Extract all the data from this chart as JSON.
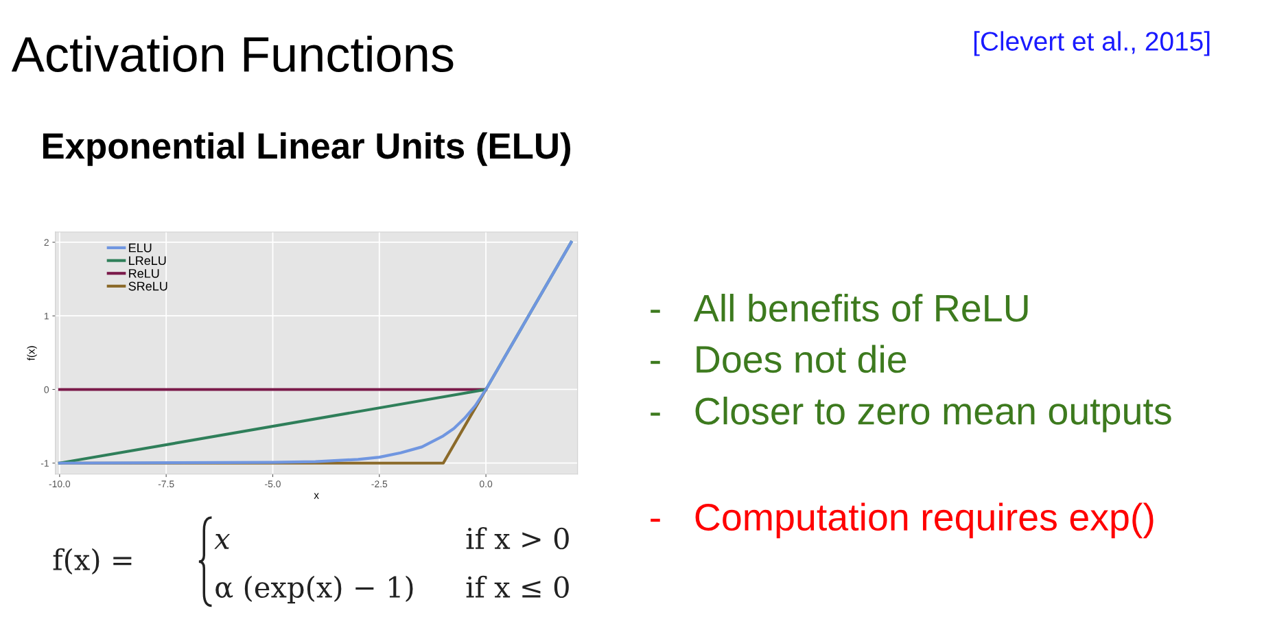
{
  "chart_data": {
    "type": "line",
    "title": "Activation Functions",
    "subtitle": "Exponential Linear Units (ELU)",
    "xlabel": "x",
    "ylabel": "f(x)",
    "series": [
      {
        "name": "ELU",
        "color": "#7096e0",
        "x": [
          -10,
          -5,
          -4,
          -3,
          -2.5,
          -2,
          -1.5,
          -1,
          -0.75,
          -0.5,
          -0.25,
          0,
          2
        ],
        "values": [
          -1,
          -0.99,
          -0.98,
          -0.95,
          -0.92,
          -0.86,
          -0.78,
          -0.63,
          -0.53,
          -0.39,
          -0.22,
          0,
          2
        ]
      },
      {
        "name": "LReLU",
        "color": "#2f7f5a",
        "x": [
          -10,
          0,
          2
        ],
        "values": [
          -1,
          0,
          2
        ]
      },
      {
        "name": "ReLU",
        "color": "#7a1a4a",
        "x": [
          -10,
          0
        ],
        "values": [
          0,
          0
        ]
      },
      {
        "name": "SReLU",
        "color": "#8b6a2a",
        "x": [
          -10,
          -1,
          0
        ],
        "values": [
          -1,
          -1,
          0
        ]
      }
    ],
    "xlim": [
      -10.1,
      2.15
    ],
    "ylim": [
      -1.15,
      2.14
    ],
    "xticks": [
      {
        "value": -10,
        "label": "-10.0"
      },
      {
        "value": -7.5,
        "label": "-7.5"
      },
      {
        "value": -5,
        "label": "-5.0"
      },
      {
        "value": -2.5,
        "label": "-2.5"
      },
      {
        "value": 0,
        "label": "0.0"
      }
    ],
    "yticks": [
      {
        "value": -1,
        "label": "-1"
      },
      0,
      1,
      2
    ],
    "grid": true,
    "legend": "top left",
    "marker": "none",
    "line_style": "solid",
    "annotations": [
      "[Clevert et al., 2015]",
      "- All benefits of ReLU",
      "- Does not die",
      "- Closer to zero mean outputs",
      "- Computation requires exp()",
      "f(x) =",
      "x",
      "if x > 0",
      "α (exp(x) − 1)",
      "if x ≤ 0"
    ]
  }
}
